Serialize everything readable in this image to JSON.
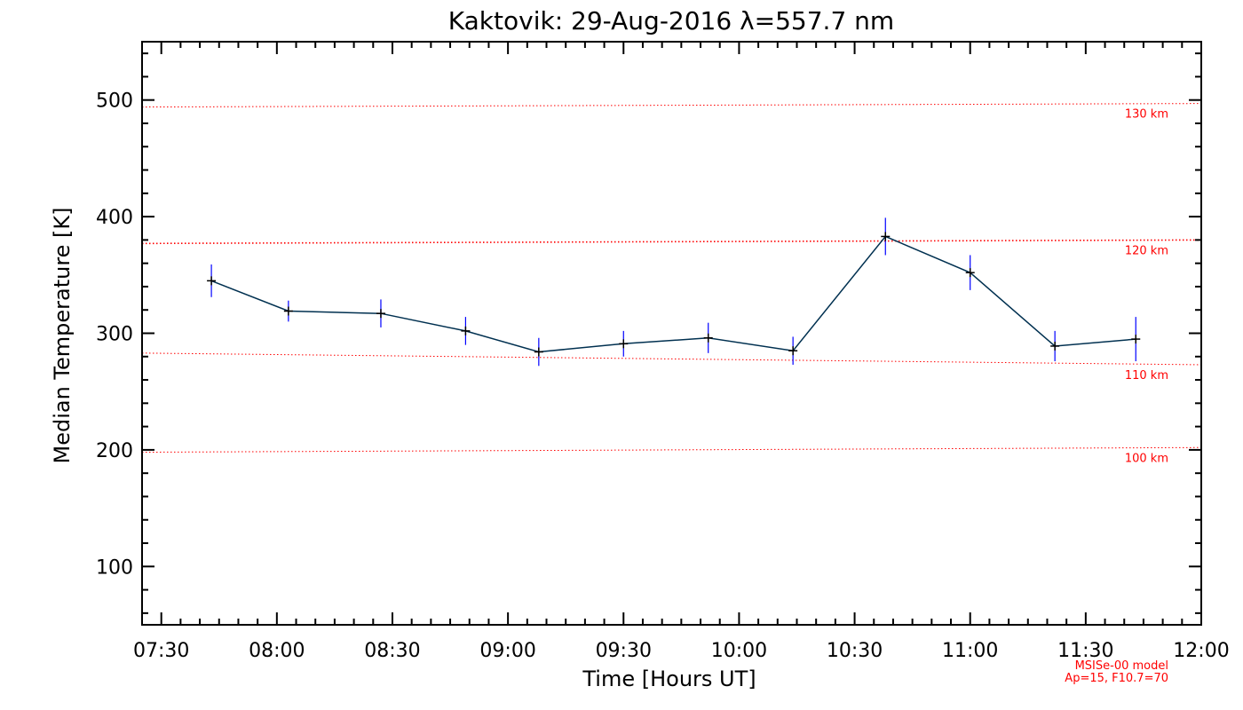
{
  "chart_data": {
    "type": "line",
    "title": "Kaktovik: 29-Aug-2016 λ=557.7 nm",
    "xlabel": "Time [Hours UT]",
    "ylabel": "Median Temperature [K]",
    "xlim": [
      "07:25",
      "12:00"
    ],
    "ylim": [
      50,
      550
    ],
    "x_tick_labels": [
      "07:30",
      "08:00",
      "08:30",
      "09:00",
      "09:30",
      "10:00",
      "10:30",
      "11:00",
      "11:30",
      "12:00"
    ],
    "y_tick_labels": [
      "100",
      "200",
      "300",
      "400",
      "500"
    ],
    "y_ticks": [
      100,
      200,
      300,
      400,
      500
    ],
    "grid": false,
    "series": [
      {
        "x": [
          "07:43",
          "08:03",
          "08:27",
          "08:49",
          "09:08",
          "09:30",
          "09:52",
          "10:14",
          "10:38",
          "11:00",
          "11:22",
          "11:43"
        ],
        "y": [
          345,
          319,
          317,
          302,
          284,
          291,
          296,
          285,
          383,
          352,
          289,
          295
        ],
        "error": [
          14,
          9,
          12,
          12,
          12,
          11,
          13,
          12,
          16,
          15,
          13,
          19
        ],
        "color": "#003050",
        "marker_color": "#000000",
        "error_color": "#0000ff"
      }
    ],
    "reference_lines": [
      {
        "label": "130 km",
        "y_start": 494,
        "y_end": 497
      },
      {
        "label": "120 km",
        "y_start": 377,
        "y_end": 380
      },
      {
        "label": "110 km",
        "y_start": 283,
        "y_end": 273
      },
      {
        "label": "100 km",
        "y_start": 198,
        "y_end": 202
      }
    ],
    "reference_color": "#ff0000",
    "annotation": {
      "line1": "MSISe-00 model",
      "line2": "Ap=15, F10.7=70",
      "color": "#ff0000"
    }
  }
}
